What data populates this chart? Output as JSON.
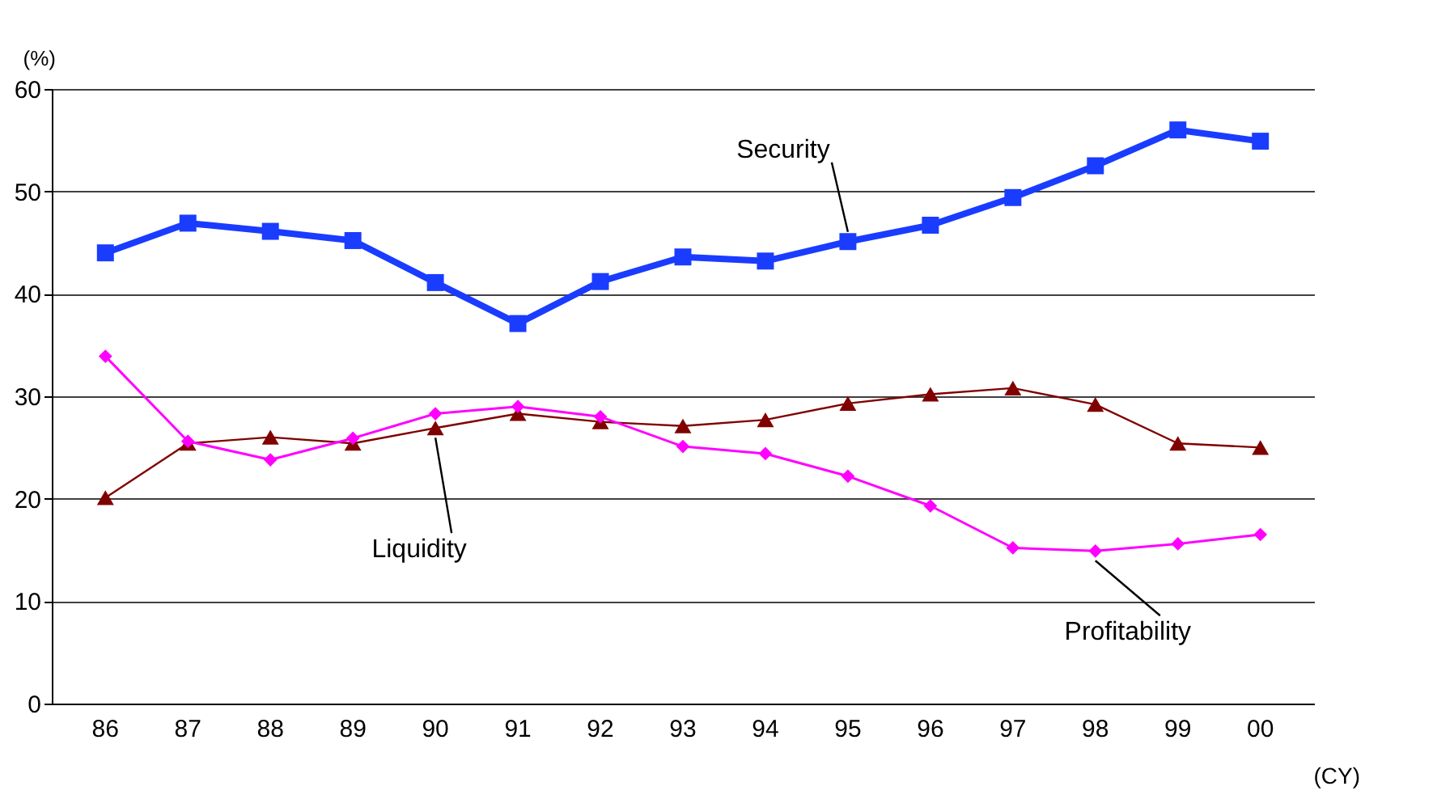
{
  "chart_data": {
    "type": "line",
    "ylabel": "(%)",
    "xlabel": "(CY)",
    "categories": [
      "86",
      "87",
      "88",
      "89",
      "90",
      "91",
      "92",
      "93",
      "94",
      "95",
      "96",
      "97",
      "98",
      "99",
      "00"
    ],
    "ylim": [
      0,
      60
    ],
    "yticks": [
      0,
      10,
      20,
      30,
      40,
      50,
      60
    ],
    "grid": "y",
    "series": [
      {
        "name": "Security",
        "color": "#1a3cff",
        "marker": "square",
        "values": [
          44.0,
          46.9,
          46.1,
          45.2,
          41.1,
          37.1,
          41.2,
          43.6,
          43.2,
          45.1,
          46.7,
          49.4,
          52.5,
          56.0,
          54.9
        ]
      },
      {
        "name": "Liquidity",
        "color": "#800000",
        "marker": "triangle",
        "values": [
          20.1,
          25.4,
          26.0,
          25.4,
          26.9,
          28.3,
          27.5,
          27.1,
          27.7,
          29.3,
          30.2,
          30.8,
          29.2,
          25.4,
          25.0
        ]
      },
      {
        "name": "Profitability",
        "color": "#ff00ff",
        "marker": "diamond",
        "values": [
          33.9,
          25.6,
          23.8,
          25.9,
          28.3,
          29.0,
          28.0,
          25.1,
          24.4,
          22.2,
          19.3,
          15.2,
          14.9,
          15.6,
          16.5
        ]
      }
    ]
  }
}
